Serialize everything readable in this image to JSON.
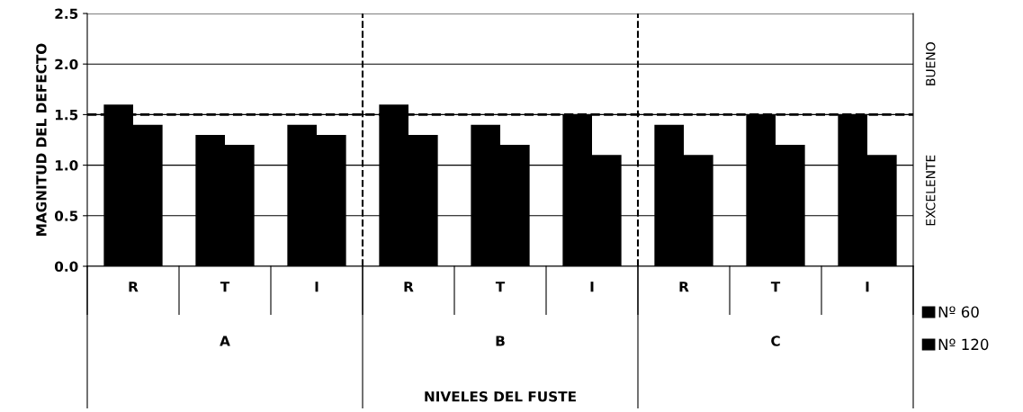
{
  "chart_data": {
    "type": "bar",
    "ylabel": "MAGNITUD DEL DEFECTO",
    "categories": [
      "R",
      "T",
      "I",
      "R",
      "T",
      "I",
      "R",
      "T",
      "I"
    ],
    "series": [
      {
        "name": "Nº 60",
        "color": "#000000",
        "values": [
          1.6,
          1.3,
          1.4,
          1.6,
          1.4,
          1.5,
          1.4,
          1.5,
          1.5
        ]
      },
      {
        "name": "Nº 120",
        "color": "#000000",
        "values": [
          1.4,
          1.2,
          1.3,
          1.3,
          1.2,
          1.1,
          1.1,
          1.2,
          1.1
        ]
      }
    ],
    "annotations": [
      "A",
      "B",
      "C",
      "BUENO",
      "EXCELENTE",
      "NIVELES DEL FUSTE"
    ],
    "ylim": [
      0,
      2.5
    ],
    "yticks": [
      {
        "value": 0,
        "label": "0.0"
      },
      {
        "value": 0.5,
        "label": "0.5"
      },
      {
        "value": 1,
        "label": "1.0"
      },
      {
        "value": 1.5,
        "label": "1.5"
      },
      {
        "value": 2,
        "label": "2.0"
      },
      {
        "value": 2.5,
        "label": "2.5"
      }
    ],
    "grid": "y",
    "legend": "right",
    "ref_lines": [
      {
        "axis": "y",
        "value": 1.5,
        "line_style": "dashed",
        "color": "#000000"
      }
    ]
  }
}
